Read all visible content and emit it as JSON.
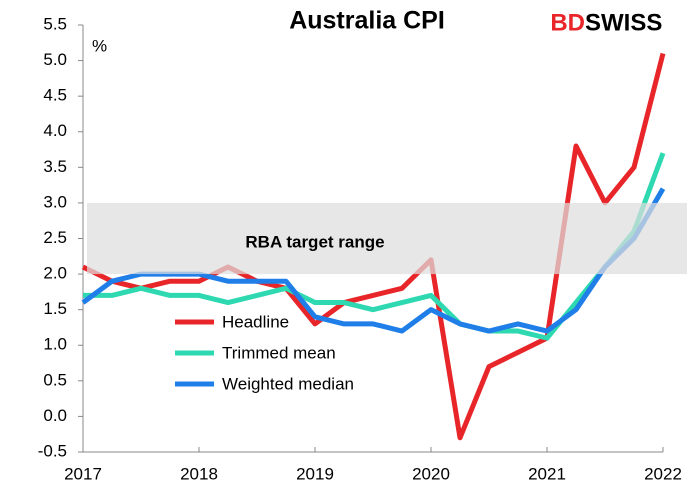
{
  "chart_data": {
    "type": "line",
    "title": "Australia CPI",
    "ylabel": "%",
    "logo_parts": [
      "BD",
      "SWISS"
    ],
    "annotation": "RBA target range",
    "target_range": [
      2,
      3
    ],
    "categories": [
      "2017",
      null,
      null,
      null,
      "2018",
      null,
      null,
      null,
      "2019",
      null,
      null,
      null,
      "2020",
      null,
      null,
      null,
      "2021",
      null,
      null,
      null,
      "2022"
    ],
    "series": [
      {
        "name": "Headline",
        "color": "#e8262a",
        "values": [
          2.1,
          1.9,
          1.8,
          1.9,
          1.9,
          2.1,
          1.9,
          1.8,
          1.3,
          1.6,
          1.7,
          1.8,
          2.2,
          -0.3,
          0.7,
          0.9,
          1.1,
          3.8,
          3.0,
          3.5,
          5.1
        ]
      },
      {
        "name": "Trimmed mean",
        "color": "#2ed8b0",
        "values": [
          1.7,
          1.7,
          1.8,
          1.7,
          1.7,
          1.6,
          1.7,
          1.8,
          1.6,
          1.6,
          1.5,
          1.6,
          1.7,
          1.3,
          1.2,
          1.2,
          1.1,
          1.6,
          2.1,
          2.6,
          3.7
        ]
      },
      {
        "name": "Weighted median",
        "color": "#1f7ee8",
        "values": [
          1.6,
          1.9,
          2.0,
          2.0,
          2.0,
          1.9,
          1.9,
          1.9,
          1.4,
          1.3,
          1.3,
          1.2,
          1.5,
          1.3,
          1.2,
          1.3,
          1.2,
          1.5,
          2.1,
          2.5,
          3.2
        ]
      }
    ],
    "ylim": [
      -0.5,
      5.5
    ],
    "yticks": [
      -0.5,
      {
        "value": 0,
        "label": "0.0"
      },
      0.5,
      {
        "value": 1,
        "label": "1.0"
      },
      1.5,
      {
        "value": 2,
        "label": "2.0"
      },
      2.5,
      {
        "value": 3,
        "label": "3.0"
      },
      3.5,
      {
        "value": 4,
        "label": "4.0"
      },
      4.5,
      {
        "value": 5,
        "label": "5.0"
      },
      5.5
    ],
    "grid": false
  }
}
